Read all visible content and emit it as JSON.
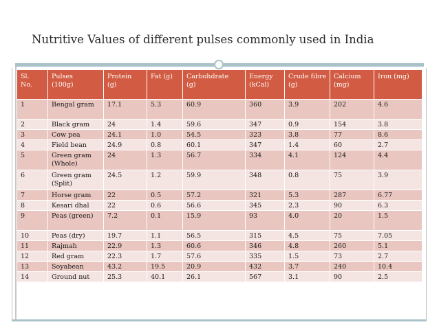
{
  "slide": {
    "title": "Nutritive Values of different pulses commonly used in India"
  },
  "table": {
    "headers": [
      {
        "line1": "Sl.",
        "line2": "No."
      },
      {
        "line1": "Pulses",
        "line2": "(100g)"
      },
      {
        "line1": "Protein",
        "line2": "(g)"
      },
      {
        "line1": "Fat (g)",
        "line2": ""
      },
      {
        "line1": "Carbohdrate",
        "line2": "(g)"
      },
      {
        "line1": "Energy",
        "line2": "(kCal)"
      },
      {
        "line1": "Crude fibre",
        "line2": "(g)"
      },
      {
        "line1": "Calcium",
        "line2": "(mg)"
      },
      {
        "line1": "Iron (mg)",
        "line2": ""
      }
    ],
    "rows": [
      [
        "1",
        "Bengal gram",
        "17.1",
        "5.3",
        "60.9",
        "360",
        "3.9",
        "202",
        "4.6"
      ],
      [
        "2",
        "Black gram",
        "24",
        "1.4",
        "59.6",
        "347",
        "0.9",
        "154",
        "3.8"
      ],
      [
        "3",
        "Cow pea",
        "24.1",
        "1.0",
        "54.5",
        "323",
        "3.8",
        "77",
        "8.6"
      ],
      [
        "4",
        "Field bean",
        "24.9",
        "0.8",
        "60.1",
        "347",
        "1.4",
        "60",
        "2.7"
      ],
      [
        "5",
        "Green gram (Whole)",
        "24",
        "1.3",
        "56.7",
        "334",
        "4.1",
        "124",
        "4.4"
      ],
      [
        "6",
        "Green gram (Split)",
        "24.5",
        "1.2",
        "59.9",
        "348",
        "0.8",
        "75",
        "3.9"
      ],
      [
        "7",
        "Horse gram",
        "22",
        "0.5",
        "57.2",
        "321",
        "5.3",
        "287",
        "6.77"
      ],
      [
        "8",
        "Kesari dhal",
        "22",
        "0.6",
        "56.6",
        "345",
        "2.3",
        "90",
        "6.3"
      ],
      [
        "9",
        "Peas (green)",
        "7.2",
        "0.1",
        "15.9",
        "93",
        "4.0",
        "20",
        "1.5"
      ],
      [
        "10",
        "Peas (dry)",
        "19.7",
        "1.1",
        "56.5",
        "315",
        "4.5",
        "75",
        "7.05"
      ],
      [
        "11",
        "Rajmah",
        "22.9",
        "1.3",
        "60.6",
        "346",
        "4.8",
        "260",
        "5.1"
      ],
      [
        "12",
        "Red gram",
        "22.3",
        "1.7",
        "57.6",
        "335",
        "1.5",
        "73",
        "2.7"
      ],
      [
        "13",
        "Soyabean",
        "43.2",
        "19.5",
        "20.9",
        "432",
        "3.7",
        "240",
        "10.4"
      ],
      [
        "14",
        "Ground nut",
        "25.3",
        "40.1",
        "26.1",
        "567",
        "3.1",
        "90",
        "2.5"
      ]
    ]
  },
  "colors": {
    "header_bg": "#d25c43",
    "row_dark": "#e9c6c0",
    "row_light": "#f4e4e2",
    "accent_rule": "#a9c1c9"
  }
}
